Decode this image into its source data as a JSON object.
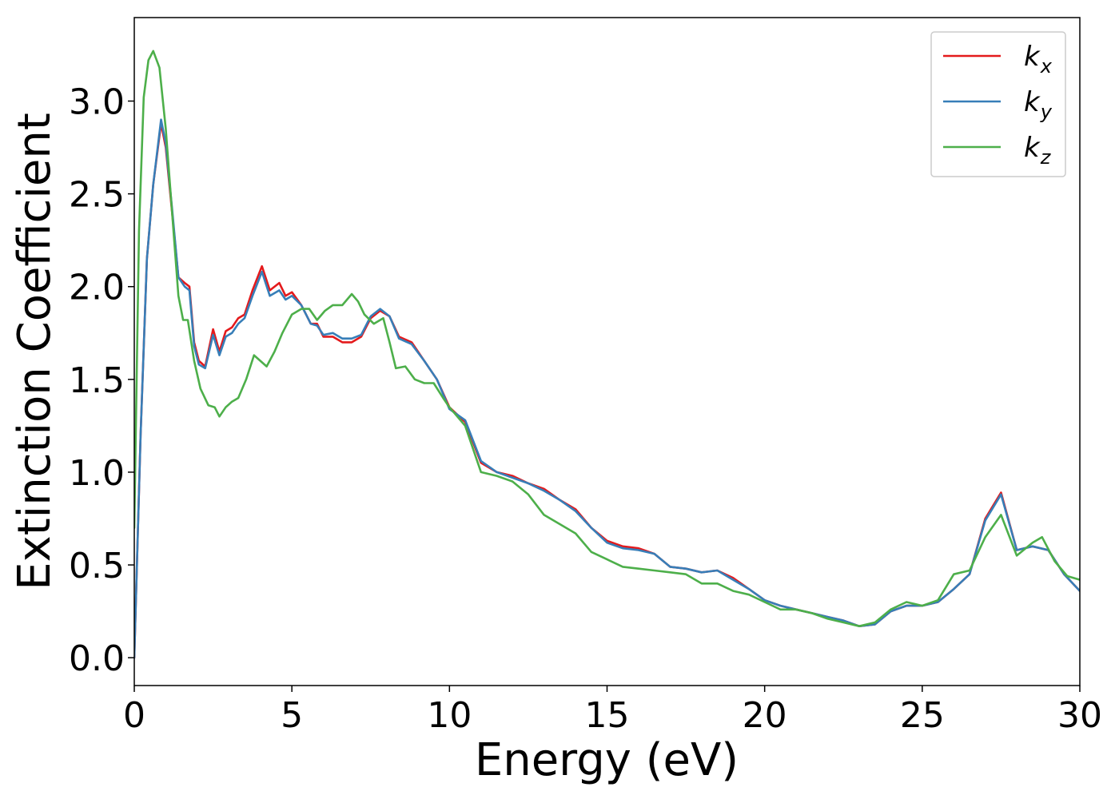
{
  "chart_data": {
    "type": "line",
    "title": "",
    "xlabel": "Energy (eV)",
    "ylabel": "Extinction Coefficient",
    "xlim": [
      0,
      30
    ],
    "ylim": [
      -0.15,
      3.45
    ],
    "x_ticks": [
      0,
      5,
      10,
      15,
      20,
      25,
      30
    ],
    "x_tick_labels": [
      "0",
      "5",
      "10",
      "15",
      "20",
      "25",
      "30"
    ],
    "y_ticks": [
      0.0,
      0.5,
      1.0,
      1.5,
      2.0,
      2.5,
      3.0
    ],
    "y_tick_labels": [
      "0.0",
      "0.5",
      "1.0",
      "1.5",
      "2.0",
      "2.5",
      "3.0"
    ],
    "grid": false,
    "legend_position": "top-right",
    "series": [
      {
        "name": "k_x",
        "label_base": "k",
        "label_sub": "x",
        "color": "#e41a1c",
        "x": [
          0,
          0.2,
          0.4,
          0.6,
          0.85,
          1.0,
          1.2,
          1.4,
          1.6,
          1.75,
          1.9,
          2.05,
          2.25,
          2.5,
          2.7,
          2.9,
          3.1,
          3.3,
          3.5,
          3.75,
          4.05,
          4.3,
          4.6,
          4.8,
          5.0,
          5.3,
          5.6,
          5.8,
          6.0,
          6.3,
          6.6,
          6.9,
          7.2,
          7.5,
          7.8,
          8.1,
          8.4,
          8.8,
          9.2,
          9.6,
          10.0,
          10.5,
          11.0,
          11.5,
          12.0,
          12.5,
          13.0,
          13.5,
          14.0,
          14.5,
          15.0,
          15.5,
          16.0,
          16.5,
          17.0,
          17.5,
          18.0,
          18.5,
          19.0,
          19.5,
          20.0,
          20.5,
          21.0,
          21.5,
          22.0,
          22.5,
          23.0,
          23.5,
          24.0,
          24.5,
          25.0,
          25.5,
          26.0,
          26.5,
          27.0,
          27.5,
          28.0,
          28.5,
          29.0,
          29.5,
          30.0
        ],
        "y": [
          0.0,
          1.2,
          2.15,
          2.55,
          2.88,
          2.75,
          2.4,
          2.05,
          2.02,
          2.0,
          1.7,
          1.6,
          1.57,
          1.77,
          1.65,
          1.76,
          1.78,
          1.83,
          1.85,
          1.98,
          2.11,
          1.98,
          2.02,
          1.95,
          1.97,
          1.9,
          1.8,
          1.8,
          1.73,
          1.73,
          1.7,
          1.7,
          1.73,
          1.83,
          1.87,
          1.84,
          1.73,
          1.7,
          1.6,
          1.5,
          1.35,
          1.27,
          1.05,
          1.0,
          0.98,
          0.94,
          0.91,
          0.85,
          0.8,
          0.7,
          0.63,
          0.6,
          0.59,
          0.56,
          0.49,
          0.48,
          0.46,
          0.47,
          0.43,
          0.37,
          0.31,
          0.28,
          0.26,
          0.24,
          0.22,
          0.2,
          0.17,
          0.18,
          0.25,
          0.28,
          0.28,
          0.3,
          0.37,
          0.45,
          0.75,
          0.89,
          0.58,
          0.6,
          0.58,
          0.45,
          0.36
        ]
      },
      {
        "name": "k_y",
        "label_base": "k",
        "label_sub": "y",
        "color": "#377eb8",
        "x": [
          0,
          0.2,
          0.4,
          0.6,
          0.85,
          1.0,
          1.2,
          1.4,
          1.6,
          1.75,
          1.9,
          2.05,
          2.25,
          2.5,
          2.7,
          2.9,
          3.1,
          3.3,
          3.5,
          3.75,
          4.05,
          4.3,
          4.6,
          4.8,
          5.0,
          5.3,
          5.6,
          5.8,
          6.0,
          6.3,
          6.6,
          6.9,
          7.2,
          7.5,
          7.8,
          8.1,
          8.4,
          8.8,
          9.2,
          9.6,
          10.0,
          10.5,
          11.0,
          11.5,
          12.0,
          12.5,
          13.0,
          13.5,
          14.0,
          14.5,
          15.0,
          15.5,
          16.0,
          16.5,
          17.0,
          17.5,
          18.0,
          18.5,
          19.0,
          19.5,
          20.0,
          20.5,
          21.0,
          21.5,
          22.0,
          22.5,
          23.0,
          23.5,
          24.0,
          24.5,
          25.0,
          25.5,
          26.0,
          26.5,
          27.0,
          27.5,
          28.0,
          28.5,
          29.0,
          29.5,
          30.0
        ],
        "y": [
          0.0,
          1.2,
          2.15,
          2.55,
          2.9,
          2.77,
          2.42,
          2.05,
          2.0,
          1.98,
          1.68,
          1.58,
          1.56,
          1.74,
          1.63,
          1.73,
          1.75,
          1.8,
          1.83,
          1.95,
          2.08,
          1.95,
          1.98,
          1.93,
          1.95,
          1.9,
          1.8,
          1.79,
          1.74,
          1.75,
          1.72,
          1.72,
          1.74,
          1.84,
          1.88,
          1.84,
          1.72,
          1.69,
          1.6,
          1.5,
          1.34,
          1.28,
          1.06,
          1.0,
          0.97,
          0.94,
          0.9,
          0.85,
          0.79,
          0.7,
          0.62,
          0.59,
          0.58,
          0.56,
          0.49,
          0.48,
          0.46,
          0.47,
          0.42,
          0.37,
          0.31,
          0.28,
          0.26,
          0.24,
          0.22,
          0.2,
          0.17,
          0.18,
          0.25,
          0.28,
          0.28,
          0.3,
          0.37,
          0.45,
          0.74,
          0.88,
          0.58,
          0.6,
          0.58,
          0.45,
          0.36
        ]
      },
      {
        "name": "k_z",
        "label_base": "k",
        "label_sub": "z",
        "color": "#4daf4a",
        "x": [
          0,
          0.15,
          0.3,
          0.45,
          0.6,
          0.8,
          1.0,
          1.2,
          1.4,
          1.55,
          1.7,
          1.9,
          2.1,
          2.35,
          2.55,
          2.7,
          2.9,
          3.1,
          3.3,
          3.55,
          3.8,
          4.0,
          4.2,
          4.45,
          4.7,
          5.0,
          5.3,
          5.55,
          5.8,
          6.05,
          6.3,
          6.6,
          6.9,
          7.1,
          7.3,
          7.6,
          7.9,
          8.1,
          8.3,
          8.6,
          8.9,
          9.2,
          9.5,
          9.8,
          10.0,
          10.5,
          11.0,
          11.5,
          12.0,
          12.5,
          13.0,
          13.5,
          14.0,
          14.5,
          15.0,
          15.5,
          16.0,
          16.5,
          17.0,
          17.5,
          18.0,
          18.5,
          19.0,
          19.5,
          20.0,
          20.5,
          21.0,
          21.5,
          22.0,
          22.5,
          23.0,
          23.5,
          24.0,
          24.5,
          25.0,
          25.5,
          26.0,
          26.5,
          27.0,
          27.5,
          28.0,
          28.5,
          28.8,
          29.2,
          29.6,
          30.0
        ],
        "y": [
          0.7,
          2.3,
          3.02,
          3.22,
          3.27,
          3.18,
          2.85,
          2.4,
          1.95,
          1.82,
          1.82,
          1.6,
          1.45,
          1.36,
          1.35,
          1.3,
          1.35,
          1.38,
          1.4,
          1.5,
          1.63,
          1.6,
          1.57,
          1.65,
          1.75,
          1.85,
          1.88,
          1.88,
          1.82,
          1.87,
          1.9,
          1.9,
          1.96,
          1.92,
          1.85,
          1.8,
          1.83,
          1.7,
          1.56,
          1.57,
          1.5,
          1.48,
          1.48,
          1.4,
          1.35,
          1.25,
          1.0,
          0.98,
          0.95,
          0.88,
          0.77,
          0.72,
          0.67,
          0.57,
          0.53,
          0.49,
          0.48,
          0.47,
          0.46,
          0.45,
          0.4,
          0.4,
          0.36,
          0.34,
          0.3,
          0.26,
          0.26,
          0.24,
          0.21,
          0.19,
          0.17,
          0.19,
          0.26,
          0.3,
          0.28,
          0.31,
          0.45,
          0.47,
          0.65,
          0.77,
          0.55,
          0.62,
          0.65,
          0.52,
          0.44,
          0.42
        ]
      }
    ]
  }
}
